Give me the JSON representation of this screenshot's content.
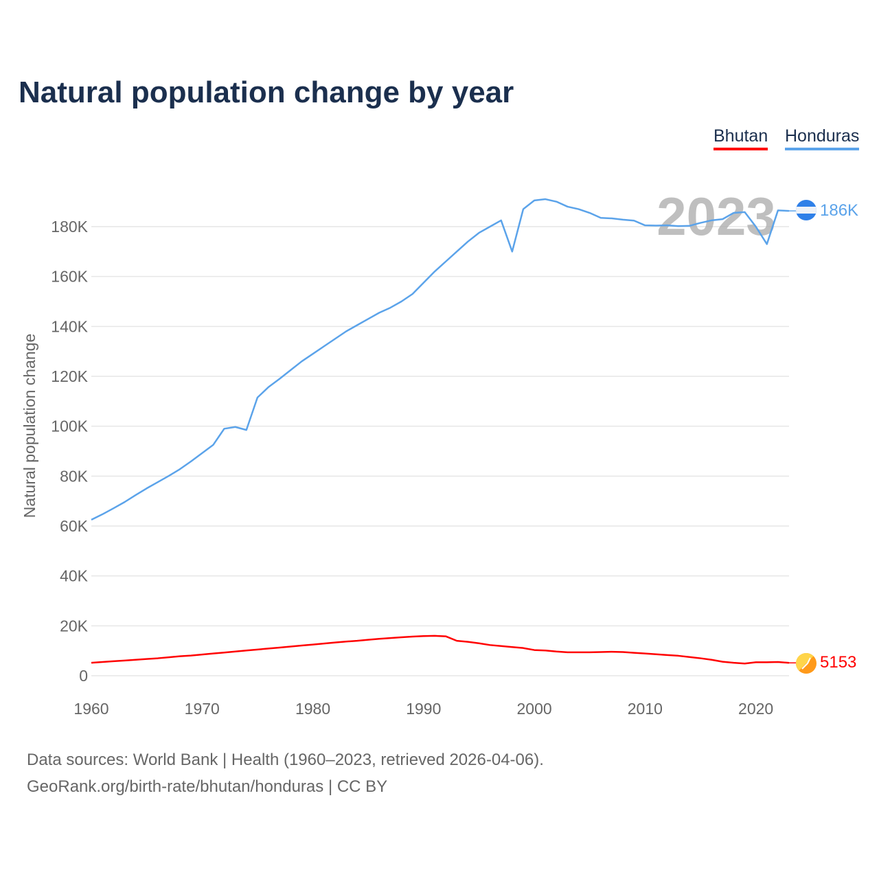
{
  "title": "Natural population change by year",
  "legend": [
    {
      "label": "Bhutan",
      "color": "#ff0000"
    },
    {
      "label": "Honduras",
      "color": "#5ba3ea"
    }
  ],
  "year_label": "2023",
  "end_labels": {
    "honduras": "186K",
    "bhutan": "5153"
  },
  "source_lines": [
    "Data sources: World Bank | Health (1960–2023, retrieved 2026-04-06).",
    "GeoRank.org/birth-rate/bhutan/honduras | CC BY"
  ],
  "chart_data": {
    "type": "line",
    "title": "Natural population change by year",
    "xlabel": "",
    "ylabel": "Natural population change",
    "xlim": [
      1960,
      2023
    ],
    "ylim": [
      0,
      180000
    ],
    "x_ticks": [
      "1960",
      "1970",
      "1980",
      "1990",
      "2000",
      "2010",
      "2020"
    ],
    "y_ticks": [
      {
        "v": 0,
        "label": "0"
      },
      {
        "v": 20000,
        "label": "20K"
      },
      {
        "v": 40000,
        "label": "40K"
      },
      {
        "v": 60000,
        "label": "60K"
      },
      {
        "v": 80000,
        "label": "80K"
      },
      {
        "v": 100000,
        "label": "100K"
      },
      {
        "v": 120000,
        "label": "120K"
      },
      {
        "v": 140000,
        "label": "140K"
      },
      {
        "v": 160000,
        "label": "160K"
      },
      {
        "v": 180000,
        "label": "180K"
      }
    ],
    "grid": true,
    "legend_position": "top-right",
    "x_start": 1960,
    "series": [
      {
        "name": "Honduras",
        "color": "#5ba3ea",
        "values_thousands": [
          62.5,
          64.7,
          67.1,
          69.6,
          72.4,
          75.1,
          77.6,
          80.1,
          82.8,
          85.9,
          89.2,
          92.5,
          99.0,
          99.7,
          98.5,
          111.5,
          115.7,
          119,
          122.5,
          126,
          129,
          132,
          135,
          138,
          140.5,
          143,
          145.5,
          147.5,
          150,
          153,
          157.5,
          162,
          166,
          170,
          174,
          177.5,
          180,
          182.5,
          170,
          187,
          190.5,
          191,
          190,
          188,
          187,
          185.5,
          183.5,
          183.3,
          182.8,
          182.4,
          180.5,
          180.4,
          180.5,
          180.2,
          180.3,
          181.5,
          182.5,
          183,
          185.5,
          185.8,
          180,
          173,
          186.5,
          186.3
        ]
      },
      {
        "name": "Bhutan",
        "color": "#ff0000",
        "values_thousands": [
          5.2,
          5.5,
          5.8,
          6.1,
          6.4,
          6.7,
          7.0,
          7.4,
          7.8,
          8.1,
          8.5,
          8.9,
          9.3,
          9.7,
          10.1,
          10.5,
          10.9,
          11.3,
          11.7,
          12.1,
          12.5,
          12.9,
          13.3,
          13.7,
          14.0,
          14.4,
          14.8,
          15.1,
          15.4,
          15.7,
          15.9,
          16.0,
          15.8,
          14.0,
          13.6,
          13.0,
          12.3,
          11.9,
          11.5,
          11.1,
          10.3,
          10.1,
          9.7,
          9.4,
          9.4,
          9.4,
          9.5,
          9.6,
          9.5,
          9.2,
          8.9,
          8.6,
          8.3,
          8.0,
          7.5,
          7.0,
          6.4,
          5.6,
          5.2,
          4.9,
          5.4,
          5.4,
          5.5,
          5.153
        ]
      }
    ]
  }
}
